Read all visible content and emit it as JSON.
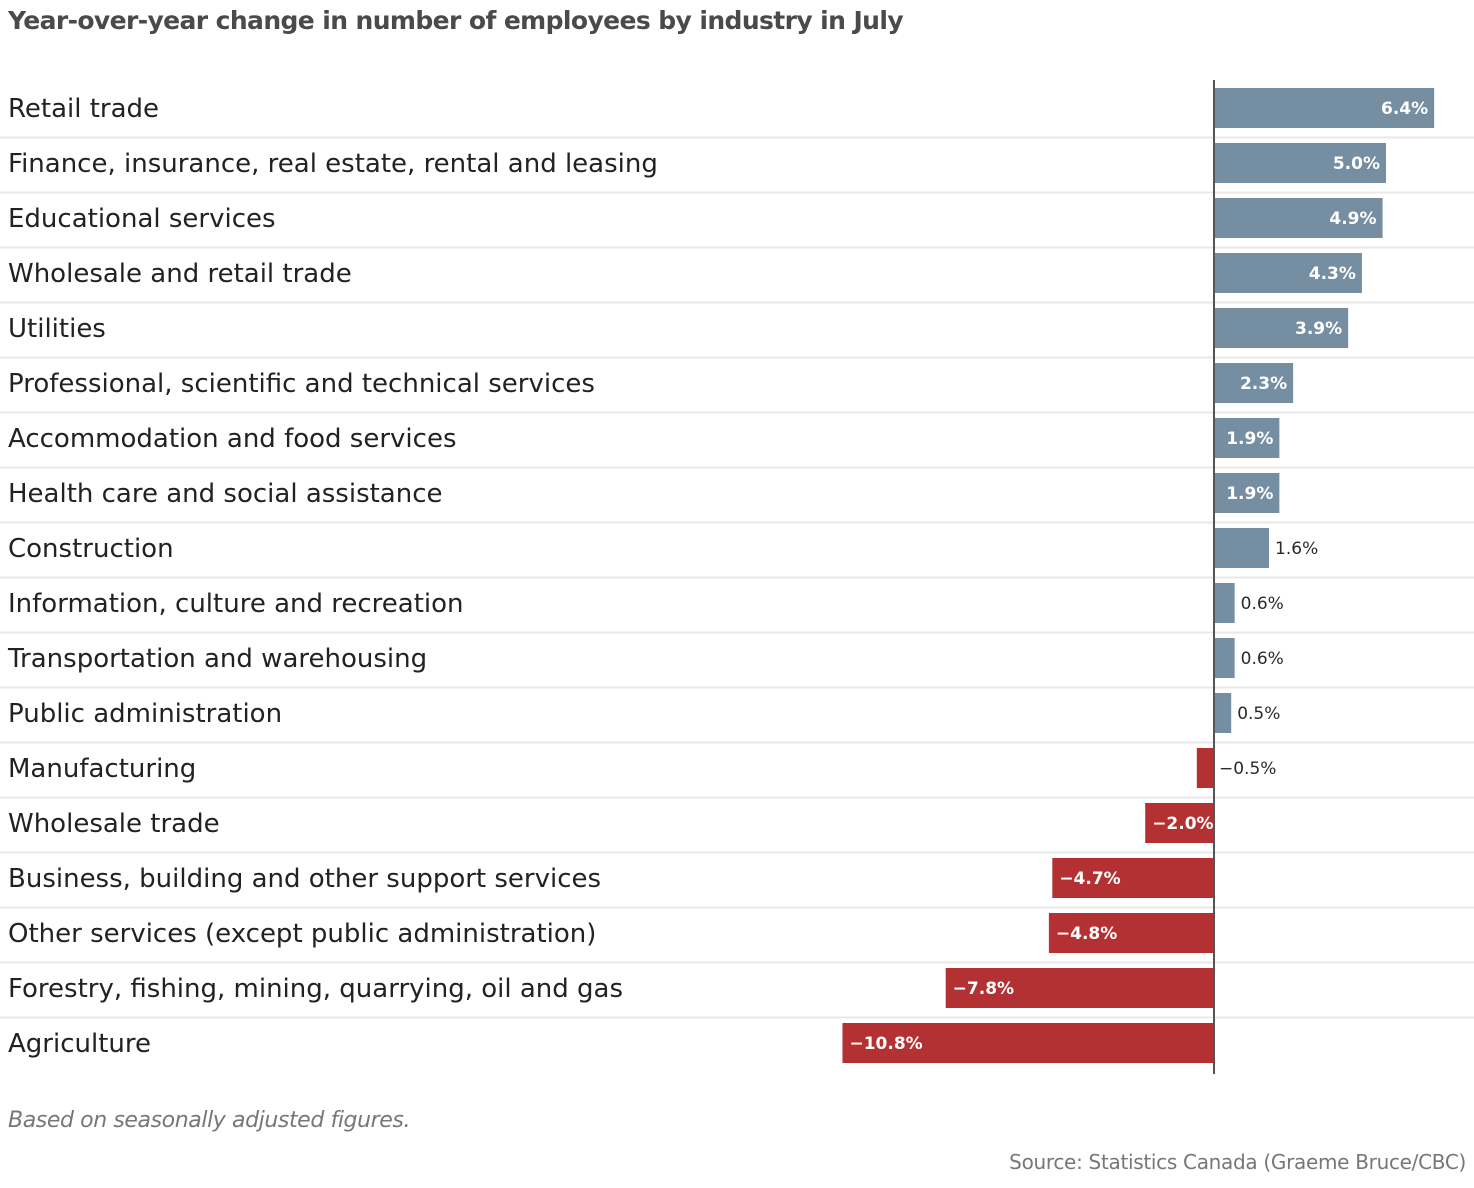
{
  "chart_data": {
    "type": "bar",
    "orientation": "horizontal",
    "title": "Year-over-year change in number of employees by industry in July",
    "xlabel": "",
    "ylabel": "",
    "unit": "%",
    "xlim": [
      -10.8,
      6.4
    ],
    "grid": false,
    "categories": [
      "Retail trade",
      "Finance, insurance, real estate, rental and leasing",
      "Educational services",
      "Wholesale and retail trade",
      "Utilities",
      "Professional, scientific and technical services",
      "Accommodation and food services",
      "Health care and social assistance",
      "Construction",
      "Information, culture and recreation",
      "Transportation and warehousing",
      "Public administration",
      "Manufacturing",
      "Wholesale trade",
      "Business, building and other support services",
      "Other services (except public administration)",
      "Forestry, fishing, mining, quarrying, oil and gas",
      "Agriculture"
    ],
    "values": [
      6.4,
      5.0,
      4.9,
      4.3,
      3.9,
      2.3,
      1.9,
      1.9,
      1.6,
      0.6,
      0.6,
      0.5,
      -0.5,
      -2.0,
      -4.7,
      -4.8,
      -7.8,
      -10.8
    ],
    "value_labels": [
      "6.4%",
      "5.0%",
      "4.9%",
      "4.3%",
      "3.9%",
      "2.3%",
      "1.9%",
      "1.9%",
      "1.6%",
      "0.6%",
      "0.6%",
      "0.5%",
      "−0.5%",
      "−2.0%",
      "−4.7%",
      "−4.8%",
      "−7.8%",
      "−10.8%"
    ],
    "colors": {
      "positive": "#768ea1",
      "negative": "#b43133",
      "zero_line": "#555555",
      "row_divider": "#e8e8e8"
    }
  },
  "footer": {
    "note": "Based on seasonally adjusted figures.",
    "source": "Source: Statistics Canada (Graeme Bruce/CBC)"
  }
}
